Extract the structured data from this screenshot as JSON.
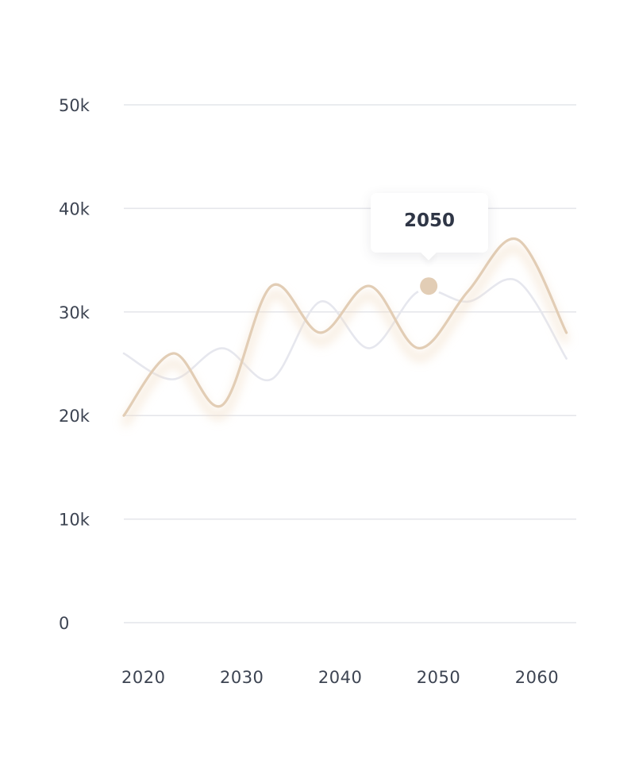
{
  "chart_data": {
    "type": "line",
    "x": [
      2018,
      2023,
      2028,
      2033,
      2038,
      2043,
      2048,
      2053,
      2058,
      2063
    ],
    "series": [
      {
        "values": [
          20000,
          26000,
          21000,
          32500,
          28000,
          32500,
          26500,
          32000,
          37000,
          28000
        ],
        "color": "#e2cdb5"
      },
      {
        "values": [
          26000,
          23500,
          26500,
          23500,
          31000,
          26500,
          32000,
          31000,
          33000,
          25500
        ],
        "color": "#e6e7ee"
      }
    ],
    "xlim": [
      2018,
      2064
    ],
    "ylim": [
      0,
      50000
    ],
    "yticks": [
      0,
      10000,
      20000,
      30000,
      40000,
      50000
    ],
    "ytick_labels": [
      "0",
      "10k",
      "20k",
      "30k",
      "40k",
      "50k"
    ],
    "xticks": [
      2020,
      2030,
      2040,
      2050,
      2060
    ],
    "xtick_labels": [
      "2020",
      "2030",
      "2040",
      "2050",
      "2060"
    ],
    "grid": true,
    "highlight": {
      "x": 2049,
      "y": 32500,
      "label": "2050",
      "color": "#e2cdb5"
    }
  }
}
